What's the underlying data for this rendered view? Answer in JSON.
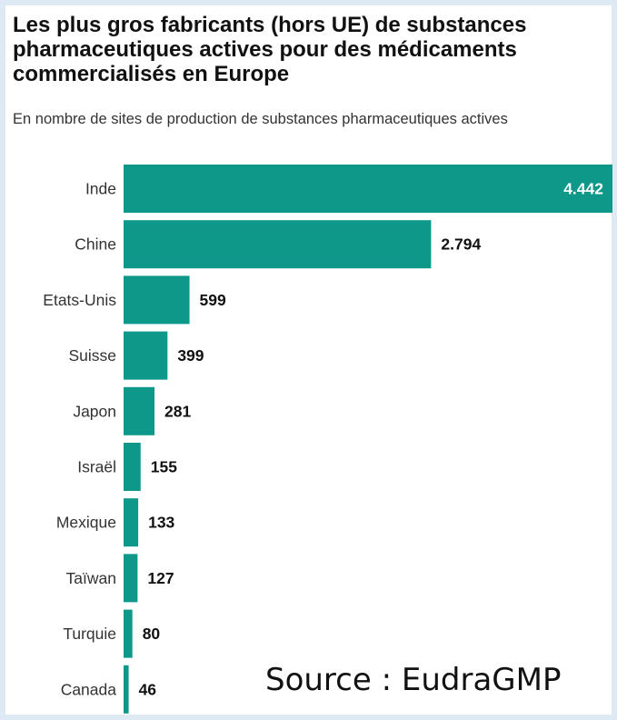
{
  "title": "Les plus gros fabricants (hors UE) de substances pharmaceutiques actives pour des médicaments commercialisés en Europe",
  "subtitle": "En nombre de sites de production de substances pharmaceutiques actives",
  "source": "Source : EudraGMP",
  "colors": {
    "bar": "#0e988a",
    "inside_label": "#ffffff",
    "outside_label": "#111111"
  },
  "chart_data": {
    "type": "bar",
    "orientation": "horizontal",
    "title": "Les plus gros fabricants (hors UE) de substances pharmaceutiques actives pour des médicaments commercialisés en Europe",
    "subtitle": "En nombre de sites de production de substances pharmaceutiques actives",
    "categories": [
      "Inde",
      "Chine",
      "Etats-Unis",
      "Suisse",
      "Japon",
      "Israël",
      "Mexique",
      "Taïwan",
      "Turquie",
      "Canada"
    ],
    "values": [
      4442,
      2794,
      599,
      399,
      281,
      155,
      133,
      127,
      80,
      46
    ],
    "value_labels": [
      "4.442",
      "2.794",
      "599",
      "399",
      "281",
      "155",
      "133",
      "127",
      "80",
      "46"
    ],
    "xlim": [
      0,
      4442
    ],
    "grid": false,
    "legend": "none"
  }
}
